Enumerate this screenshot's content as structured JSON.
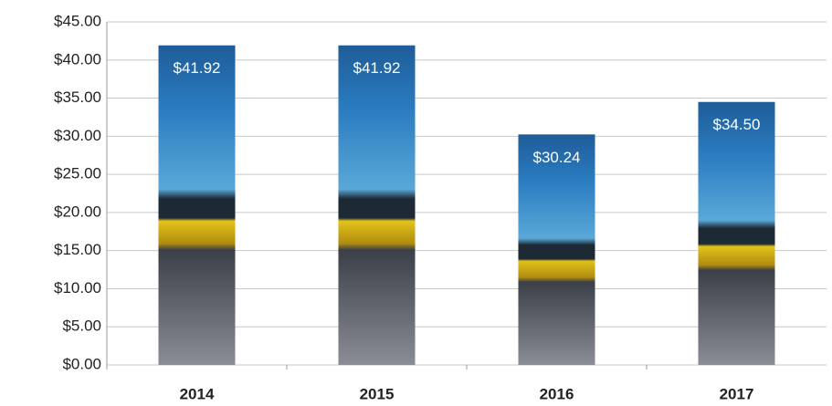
{
  "chart_data": {
    "type": "bar",
    "categories": [
      "2014",
      "2015",
      "2016",
      "2017"
    ],
    "values": [
      41.92,
      41.92,
      30.24,
      34.5
    ],
    "value_labels": [
      "$41.92",
      "$41.92",
      "$30.24",
      "$34.50"
    ],
    "ylim": [
      0,
      45
    ],
    "yticks": [
      {
        "value": 0,
        "label": "$0.00"
      },
      {
        "value": 5,
        "label": "$5.00"
      },
      {
        "value": 10,
        "label": "$10.00"
      },
      {
        "value": 15,
        "label": "$15.00"
      },
      {
        "value": 20,
        "label": "$20.00"
      },
      {
        "value": 25,
        "label": "$25.00"
      },
      {
        "value": 30,
        "label": "$30.00"
      },
      {
        "value": 35,
        "label": "$35.00"
      },
      {
        "value": 40,
        "label": "$40.00"
      },
      {
        "value": 45,
        "label": "$45.00"
      }
    ],
    "grid": true
  }
}
